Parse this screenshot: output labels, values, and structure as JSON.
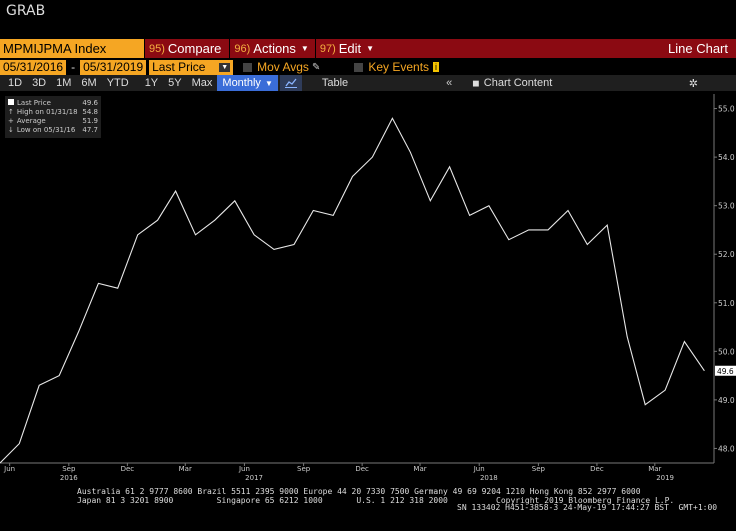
{
  "header": {
    "title": "GRAB"
  },
  "toolbar": {
    "ticker": "MPMIJPMA Index",
    "menus": [
      {
        "num": "95)",
        "label": "Compare",
        "caret": false
      },
      {
        "num": "96)",
        "label": "Actions",
        "caret": true
      },
      {
        "num": "97)",
        "label": "Edit",
        "caret": true
      }
    ],
    "view_label": "Line Chart"
  },
  "settings": {
    "start_date": "05/31/2016",
    "end_date": "05/31/2019",
    "field": "Last Price",
    "mov_avgs": "Mov Avgs",
    "key_events": "Key Events",
    "key_events_badge": "i"
  },
  "periods": {
    "items": [
      "1D",
      "3D",
      "1M",
      "6M",
      "YTD",
      "1Y",
      "5Y",
      "Max"
    ],
    "frequency": "Monthly",
    "table_label": "Table",
    "chart_content_label": "Chart Content"
  },
  "legend": {
    "rows": [
      {
        "label": "Last Price",
        "value": "49.6"
      },
      {
        "label": "High on 01/31/18",
        "value": "54.8"
      },
      {
        "label": "Average",
        "value": "51.9"
      },
      {
        "label": "Low on 05/31/16",
        "value": "47.7"
      }
    ]
  },
  "chart_data": {
    "type": "line",
    "series": [
      {
        "x": [
          "2016-05-31",
          "2016-06-30",
          "2016-07-31",
          "2016-08-31",
          "2016-09-30",
          "2016-10-31",
          "2016-11-30",
          "2016-12-31",
          "2017-01-31",
          "2017-02-28",
          "2017-03-31",
          "2017-04-30",
          "2017-05-31",
          "2017-06-30",
          "2017-07-31",
          "2017-08-31",
          "2017-09-30",
          "2017-10-31",
          "2017-11-30",
          "2017-12-31",
          "2018-01-31",
          "2018-02-28",
          "2018-03-31",
          "2018-04-30",
          "2018-05-31",
          "2018-06-30",
          "2018-07-31",
          "2018-08-31",
          "2018-09-30",
          "2018-10-31",
          "2018-11-30",
          "2018-12-31",
          "2019-01-31",
          "2019-02-28",
          "2019-03-31",
          "2019-04-30",
          "2019-05-31"
        ],
        "values": [
          47.7,
          48.1,
          49.3,
          49.5,
          50.4,
          51.4,
          51.3,
          52.4,
          52.7,
          53.3,
          52.4,
          52.7,
          53.1,
          52.4,
          52.1,
          52.2,
          52.9,
          52.8,
          53.6,
          54.0,
          54.8,
          54.1,
          53.1,
          53.8,
          52.8,
          53.0,
          52.3,
          52.5,
          52.5,
          52.9,
          52.2,
          52.6,
          50.3,
          48.9,
          49.2,
          50.2,
          49.6
        ]
      }
    ],
    "ylim": [
      47.7,
      55.3
    ],
    "y_ticks": [
      "48.0",
      "49.0",
      "50.0",
      "51.0",
      "52.0",
      "53.0",
      "54.0",
      "55.0"
    ],
    "y_tick_values": [
      48,
      49,
      50,
      51,
      52,
      53,
      54,
      55
    ],
    "last_value_label": "49.6",
    "x_ticks": [
      {
        "label": "Jun",
        "date": "2016-06-15"
      },
      {
        "label": "Sep",
        "date": "2016-09-15"
      },
      {
        "label": "Dec",
        "date": "2016-12-15"
      },
      {
        "label": "Mar",
        "date": "2017-03-15"
      },
      {
        "label": "Jun",
        "date": "2017-06-15"
      },
      {
        "label": "Sep",
        "date": "2017-09-15"
      },
      {
        "label": "Dec",
        "date": "2017-12-15"
      },
      {
        "label": "Mar",
        "date": "2018-03-15"
      },
      {
        "label": "Jun",
        "date": "2018-06-15"
      },
      {
        "label": "Sep",
        "date": "2018-09-15"
      },
      {
        "label": "Dec",
        "date": "2018-12-15"
      },
      {
        "label": "Mar",
        "date": "2019-03-15"
      }
    ],
    "year_labels": [
      {
        "label": "2016",
        "date": "2016-09-15"
      },
      {
        "label": "2017",
        "date": "2017-06-30"
      },
      {
        "label": "2018",
        "date": "2018-06-30"
      },
      {
        "label": "2019",
        "date": "2019-03-31"
      }
    ],
    "x_range": [
      "2016-05-31",
      "2019-06-15"
    ],
    "grid": false,
    "legend_position": "top-left"
  },
  "footer": {
    "line1": "Australia 61 2 9777 8600 Brazil 5511 2395 9000 Europe 44 20 7330 7500 Germany 49 69 9204 1210 Hong Kong 852 2977 6000",
    "line2": "Japan 81 3 3201 8900         Singapore 65 6212 1000       U.S. 1 212 318 2000          Copyright 2019 Bloomberg Finance L.P.",
    "line3": "SN 133402 H451-3858-3 24-May-19 17:44:27 BST  GMT+1:00"
  }
}
